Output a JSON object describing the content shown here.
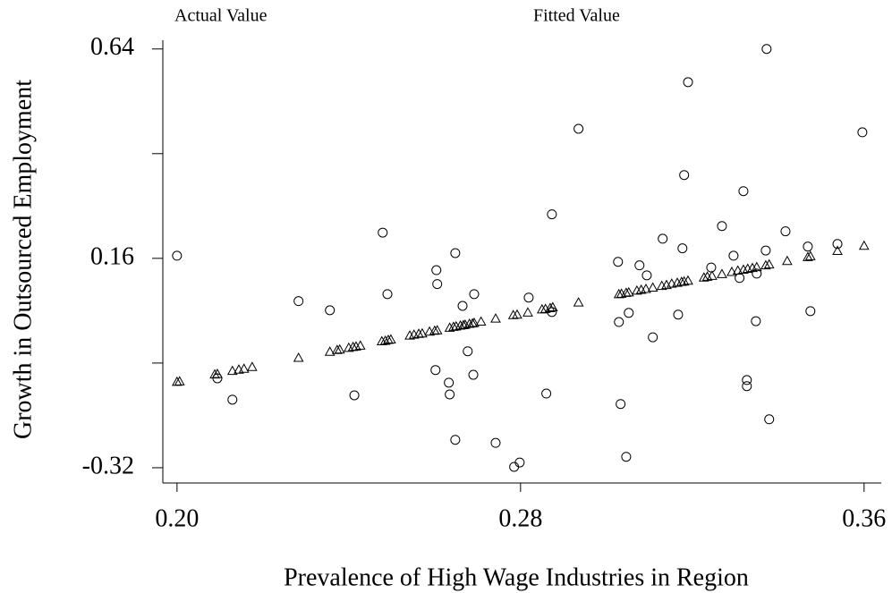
{
  "chart_data": {
    "type": "scatter",
    "xlabel": "Prevalence of High Wage Industries in Region",
    "ylabel": "Growth in Outsourced Employment",
    "xlim": [
      0.1967,
      0.364
    ],
    "ylim": [
      -0.355,
      0.66
    ],
    "xticks": [
      {
        "value": 0.2,
        "label": "0.20"
      },
      0.28,
      0.36
    ],
    "yticks": [
      -0.32,
      0.16,
      0.64
    ],
    "yticks_unlabeled": [
      -0.08,
      0.4
    ],
    "grid": false,
    "series": [
      {
        "name": "Actual Value",
        "marker": "circle",
        "color": "#000000",
        "x": [
          0.2,
          0.2094,
          0.2129,
          0.2283,
          0.2356,
          0.2413,
          0.2479,
          0.249,
          0.2604,
          0.2606,
          0.2602,
          0.2633,
          0.2635,
          0.2648,
          0.2648,
          0.2665,
          0.2677,
          0.269,
          0.2692,
          0.2742,
          0.2785,
          0.2798,
          0.2819,
          0.286,
          0.2873,
          0.2873,
          0.2935,
          0.3027,
          0.3029,
          0.3033,
          0.3046,
          0.3052,
          0.3077,
          0.3094,
          0.3108,
          0.3131,
          0.3167,
          0.3177,
          0.3181,
          0.319,
          0.3244,
          0.3269,
          0.3296,
          0.331,
          0.3319,
          0.3327,
          0.3327,
          0.3348,
          0.335,
          0.3371,
          0.3373,
          0.3379,
          0.3417,
          0.3469,
          0.3475,
          0.3538,
          0.3596
        ],
        "values": [
          0.166,
          -0.115,
          -0.164,
          0.062,
          0.041,
          -0.154,
          0.219,
          0.078,
          0.133,
          0.101,
          -0.096,
          -0.125,
          -0.152,
          0.172,
          -0.256,
          0.051,
          -0.053,
          -0.107,
          0.078,
          -0.263,
          -0.318,
          -0.308,
          0.07,
          -0.15,
          0.261,
          0.037,
          0.457,
          0.152,
          0.014,
          -0.174,
          -0.295,
          0.035,
          0.144,
          0.121,
          -0.021,
          0.205,
          0.031,
          0.183,
          0.351,
          0.564,
          0.139,
          0.234,
          0.166,
          0.115,
          0.314,
          -0.119,
          -0.133,
          0.016,
          0.125,
          0.178,
          0.64,
          -0.209,
          0.222,
          0.187,
          0.039,
          0.193,
          0.449
        ]
      },
      {
        "name": "Fitted Value",
        "marker": "triangle",
        "color": "#000000",
        "x": [
          0.2,
          0.2006,
          0.2088,
          0.2094,
          0.2129,
          0.2144,
          0.2156,
          0.2175,
          0.2283,
          0.2356,
          0.2373,
          0.2379,
          0.24,
          0.241,
          0.2417,
          0.2427,
          0.2477,
          0.2485,
          0.2492,
          0.2498,
          0.2542,
          0.2552,
          0.2563,
          0.2571,
          0.2588,
          0.26,
          0.2606,
          0.2635,
          0.2644,
          0.265,
          0.266,
          0.2667,
          0.2671,
          0.2681,
          0.2688,
          0.2692,
          0.2708,
          0.2742,
          0.2783,
          0.2792,
          0.2817,
          0.285,
          0.2858,
          0.2869,
          0.2875,
          0.2935,
          0.3029,
          0.3035,
          0.3046,
          0.3052,
          0.3071,
          0.3081,
          0.3092,
          0.3108,
          0.3129,
          0.314,
          0.3152,
          0.3165,
          0.3175,
          0.3181,
          0.319,
          0.3227,
          0.3235,
          0.3246,
          0.3269,
          0.3292,
          0.3306,
          0.3319,
          0.3329,
          0.334,
          0.335,
          0.3371,
          0.3379,
          0.3421,
          0.3469,
          0.3475,
          0.3538,
          0.36
        ],
        "values": [
          -0.123,
          -0.122,
          -0.106,
          -0.105,
          -0.098,
          -0.095,
          -0.093,
          -0.089,
          -0.068,
          -0.054,
          -0.05,
          -0.049,
          -0.045,
          -0.043,
          -0.042,
          -0.04,
          -0.03,
          -0.029,
          -0.027,
          -0.026,
          -0.017,
          -0.015,
          -0.013,
          -0.012,
          -0.008,
          -0.006,
          -0.005,
          0.001,
          0.003,
          0.004,
          0.006,
          0.007,
          0.008,
          0.01,
          0.011,
          0.012,
          0.015,
          0.022,
          0.03,
          0.031,
          0.036,
          0.043,
          0.044,
          0.046,
          0.048,
          0.059,
          0.078,
          0.079,
          0.081,
          0.082,
          0.086,
          0.088,
          0.09,
          0.093,
          0.097,
          0.099,
          0.102,
          0.104,
          0.106,
          0.107,
          0.109,
          0.116,
          0.118,
          0.12,
          0.124,
          0.129,
          0.132,
          0.134,
          0.136,
          0.138,
          0.14,
          0.144,
          0.146,
          0.154,
          0.163,
          0.165,
          0.177,
          0.189
        ]
      }
    ]
  }
}
